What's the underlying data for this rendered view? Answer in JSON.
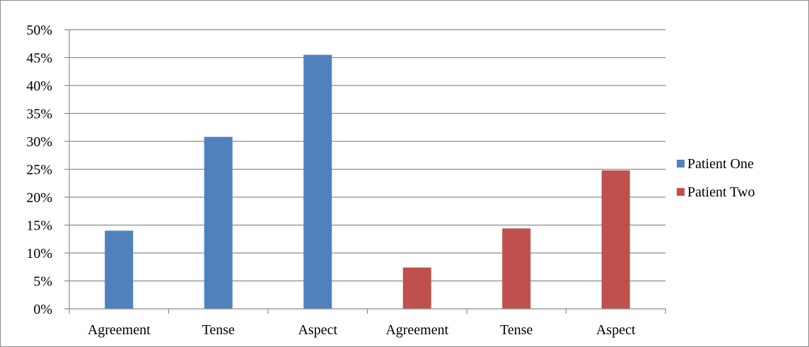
{
  "chart_data": {
    "type": "bar",
    "categories": [
      "Agreement",
      "Tense",
      "Aspect",
      "Agreement",
      "Tense",
      "Aspect"
    ],
    "series": [
      {
        "name": "Patient One",
        "color": "#4f81bd",
        "values": [
          14,
          30.8,
          45.5,
          null,
          null,
          null
        ]
      },
      {
        "name": "Patient Two",
        "color": "#c0504d",
        "values": [
          null,
          null,
          null,
          7.4,
          14.4,
          24.8
        ]
      }
    ],
    "title": "",
    "xlabel": "",
    "ylabel": "",
    "ylim": [
      0,
      50
    ],
    "y_ticks": [
      0,
      5,
      10,
      15,
      20,
      25,
      30,
      35,
      40,
      45,
      50
    ],
    "y_tick_format": "percent",
    "grid": true,
    "legend_position": "right"
  }
}
